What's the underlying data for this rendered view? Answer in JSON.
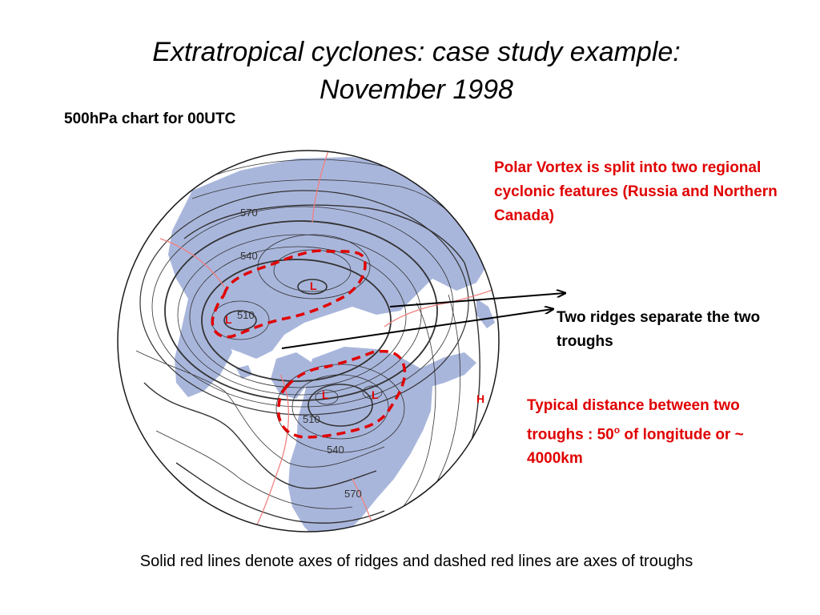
{
  "slide": {
    "title_line1": "Extratropical cyclones: case study example:",
    "title_line2": "November 1998",
    "subtitle": "500hPa chart for 00UTC",
    "notes": {
      "polar_vortex": "Polar Vortex is split into two regional cyclonic  features (Russia and Northern Canada)",
      "ridges": "Two ridges separate the two troughs",
      "distance_prefix": "Typical distance between two troughs : 50",
      "distance_degree": "o",
      "distance_suffix": " of longitude or ~ 4000km"
    },
    "caption": "Solid red lines denote axes of ridges and dashed red lines are axes of troughs"
  },
  "map": {
    "contour_labels": [
      "570",
      "540",
      "510",
      "510",
      "540",
      "570"
    ],
    "lows": [
      "L",
      "L",
      "L",
      "L"
    ],
    "highs": [
      "H"
    ],
    "colors": {
      "ocean": "#ffffff",
      "land": "#a9b6dc",
      "contour": "#333333",
      "trough": "#e00000",
      "ridge": "#f08080",
      "arrow": "#000000"
    }
  }
}
